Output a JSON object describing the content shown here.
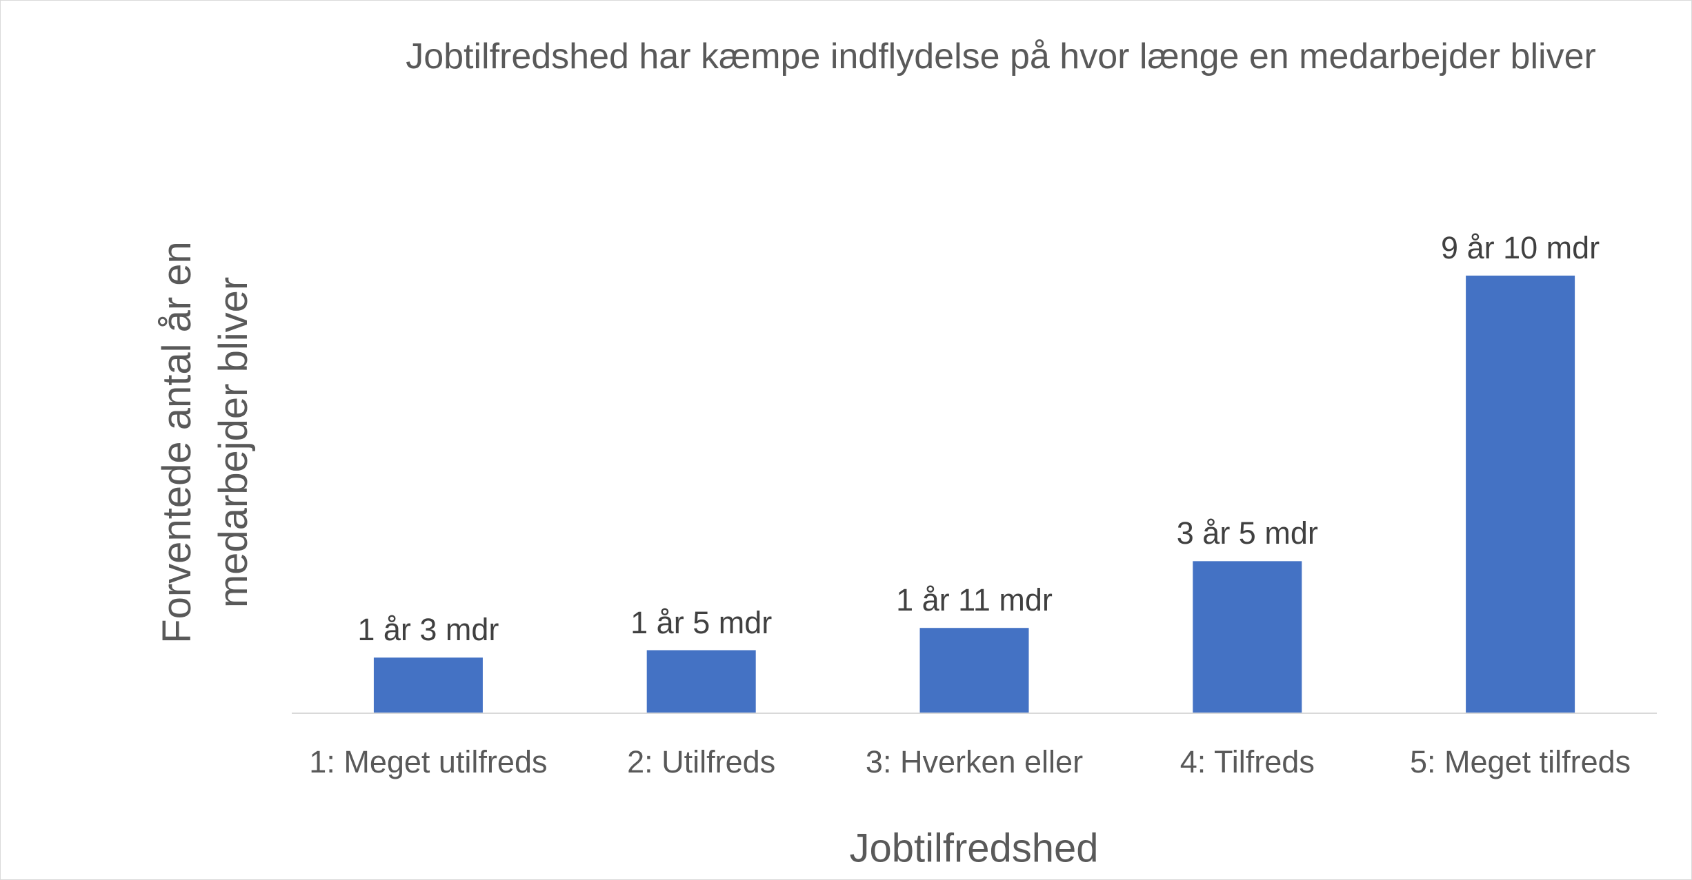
{
  "chart_data": {
    "type": "bar",
    "title": "Jobtilfredshed har kæmpe indflydelse på hvor længe en medarbejder bliver",
    "x_label": "Jobtilfredshed",
    "y_label": "Forventede antal år en medarbejder bliver",
    "categories": [
      "1: Meget utilfreds",
      "2: Utilfreds",
      "3: Hverken eller",
      "4: Tilfreds",
      "5: Meget tilfreds"
    ],
    "values": [
      1.25,
      1.4167,
      1.9167,
      3.4167,
      9.8333
    ],
    "value_labels": [
      "1 år 3 mdr",
      "1 år 5 mdr",
      "1 år 11 mdr",
      "3 år 5 mdr",
      "9 år 10 mdr"
    ],
    "color": "#4472c4",
    "ylim": [
      0,
      12
    ]
  }
}
